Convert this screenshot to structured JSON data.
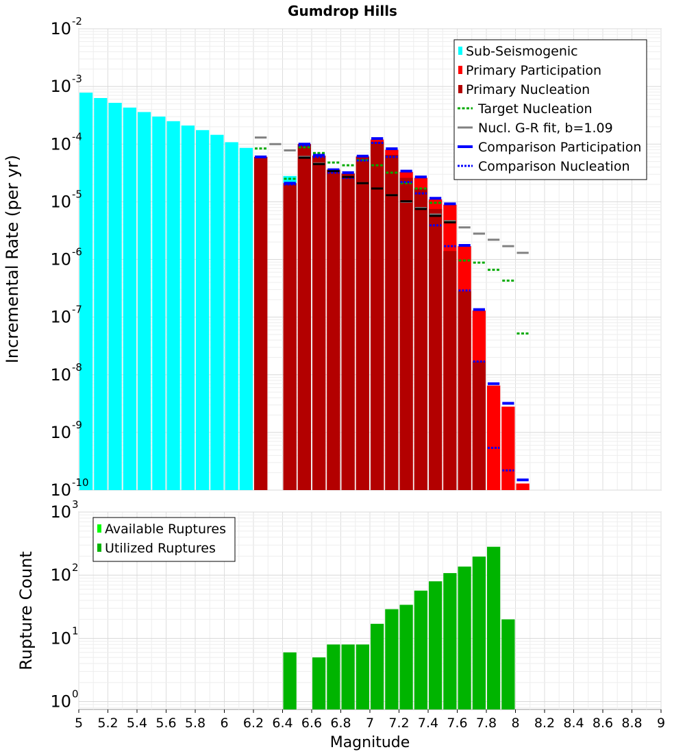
{
  "chart_data": [
    {
      "type": "bar",
      "title": "Gumdrop Hills",
      "xlabel": "",
      "ylabel": "Incremental Rate (per yr)",
      "xlim": [
        5,
        9
      ],
      "ylim": [
        1e-10,
        0.01
      ],
      "log_y": true,
      "grid": true,
      "legend_position": "top-right",
      "bin_width": 0.1,
      "y_tick_labels": [
        {
          "value": 0.01,
          "base": "10",
          "exp": "-2"
        },
        {
          "value": 0.001,
          "base": "10",
          "exp": "-3"
        },
        {
          "value": 0.0001,
          "base": "10",
          "exp": "-4"
        },
        {
          "value": 1e-05,
          "base": "10",
          "exp": "-5"
        },
        {
          "value": 1e-06,
          "base": "10",
          "exp": "-6"
        },
        {
          "value": 1e-07,
          "base": "10",
          "exp": "-7"
        },
        {
          "value": 1e-08,
          "base": "10",
          "exp": "-8"
        },
        {
          "value": 1e-09,
          "base": "10",
          "exp": "-9"
        },
        {
          "value": 1e-10,
          "base": "10",
          "exp": "-10"
        }
      ],
      "series": [
        {
          "name": "Sub-Seismogenic",
          "kind": "bar",
          "color": "#00ffff",
          "x": [
            5.05,
            5.15,
            5.25,
            5.35,
            5.45,
            5.55,
            5.65,
            5.75,
            5.85,
            5.95,
            6.05,
            6.15,
            6.45
          ],
          "values": [
            0.00078,
            0.00063,
            0.00052,
            0.00043,
            0.00036,
            0.0003,
            0.00025,
            0.00021,
            0.000175,
            0.000145,
            0.000108,
            8.6e-05,
            2.8e-05
          ]
        },
        {
          "name": "Primary Participation",
          "kind": "bar",
          "color": "#ff0000",
          "x": [
            6.25,
            6.45,
            6.55,
            6.65,
            6.75,
            6.85,
            6.95,
            7.05,
            7.15,
            7.25,
            7.35,
            7.45,
            7.55,
            7.65,
            7.75,
            7.85,
            7.95,
            8.05
          ],
          "values": [
            6e-05,
            2.1e-05,
            0.0001,
            6.3e-05,
            3.6e-05,
            3.1e-05,
            6.1e-05,
            0.00012,
            8e-05,
            3.3e-05,
            2.6e-05,
            1.1e-05,
            8.9e-06,
            1.7e-06,
            1.3e-07,
            6.5e-09,
            2.8e-09,
            1.3e-10
          ]
        },
        {
          "name": "Primary Nucleation",
          "kind": "bar",
          "color": "#b30000",
          "x": [
            6.25,
            6.45,
            6.55,
            6.65,
            6.75,
            6.85,
            6.95,
            7.05,
            7.15,
            7.25,
            7.35,
            7.45,
            7.55,
            7.65,
            7.75,
            7.85
          ],
          "values": [
            6e-05,
            2.1e-05,
            0.0001,
            6.3e-05,
            3.6e-05,
            3.1e-05,
            6.1e-05,
            0.00011,
            6.5e-05,
            2.6e-05,
            1.7e-05,
            7.5e-06,
            1.4e-06,
            2.8e-07,
            1.7e-08,
            1e-10
          ]
        },
        {
          "name": "Target Nucleation",
          "kind": "step",
          "color": "#00aa00",
          "dash": "4,2.5",
          "x": [
            6.25,
            6.45,
            6.55,
            6.65,
            6.75,
            6.85,
            6.95,
            7.05,
            7.15,
            7.25,
            7.35,
            7.45,
            7.55,
            7.65,
            7.75,
            7.85,
            7.95,
            8.05
          ],
          "values": [
            8.4e-05,
            2.5e-05,
            8.8e-05,
            7e-05,
            4.8e-05,
            4.3e-05,
            5.3e-05,
            4.3e-05,
            3.2e-05,
            2.1e-05,
            1.7e-05,
            9.6e-06,
            4.6e-06,
            9.6e-07,
            8.8e-07,
            6.6e-07,
            4.3e-07,
            5.2e-08
          ]
        },
        {
          "name": "Nucl. G-R fit, b=1.09",
          "kind": "step",
          "color": "#808080",
          "x": [
            6.25,
            6.35,
            6.45,
            6.55,
            6.65,
            6.75,
            6.85,
            6.95,
            7.05,
            7.15,
            7.25,
            7.35,
            7.45,
            7.55,
            7.65,
            7.75,
            7.85,
            7.95,
            8.05
          ],
          "values": [
            0.00013,
            0.0001,
            7.8e-05,
            6e-05,
            4.6e-05,
            3.5e-05,
            2.7e-05,
            2.1e-05,
            1.7e-05,
            1.3e-05,
            1e-05,
            7.8e-06,
            6e-06,
            4.6e-06,
            3.6e-06,
            2.8e-06,
            2.2e-06,
            1.7e-06,
            1.3e-06
          ]
        },
        {
          "name": "Comparison Participation",
          "kind": "step",
          "color": "#0000ff",
          "x": [
            6.25,
            6.45,
            6.55,
            6.65,
            6.75,
            6.85,
            6.95,
            7.05,
            7.15,
            7.25,
            7.35,
            7.45,
            7.55,
            7.65,
            7.75,
            7.85,
            7.95,
            8.05
          ],
          "values": [
            6e-05,
            2.1e-05,
            0.0001,
            6.4e-05,
            3.6e-05,
            3.2e-05,
            6.2e-05,
            0.000125,
            8.3e-05,
            3.4e-05,
            2.7e-05,
            1.15e-05,
            9.2e-06,
            1.75e-06,
            1.35e-07,
            7e-09,
            3.2e-09,
            1.5e-10
          ]
        },
        {
          "name": "Comparison Nucleation",
          "kind": "step",
          "color": "#0000ff",
          "dash": "3,2",
          "x": [
            6.45,
            6.55,
            6.65,
            6.75,
            6.85,
            6.95,
            7.05,
            7.15,
            7.25,
            7.35,
            7.45,
            7.55,
            7.65,
            7.75,
            7.85,
            7.95
          ],
          "values": [
            2e-05,
            9.5e-05,
            6e-05,
            3.2e-05,
            2.6e-05,
            5.2e-05,
            0.000105,
            6e-05,
            2.2e-05,
            1.4e-05,
            3.9e-06,
            1.7e-06,
            2.9e-07,
            1.7e-08,
            5.4e-10,
            2.2e-10
          ]
        },
        {
          "name": "",
          "kind": "step",
          "color": "#000000",
          "x": [
            6.55,
            6.65,
            6.75,
            6.85,
            6.95,
            7.05,
            7.15,
            7.25,
            7.35,
            7.45,
            7.55
          ],
          "values": [
            5.8e-05,
            4.5e-05,
            3.4e-05,
            2.7e-05,
            2.1e-05,
            1.7e-05,
            1.3e-05,
            1.02e-05,
            7.5e-06,
            5.7e-06,
            4.4e-06
          ]
        }
      ]
    },
    {
      "type": "bar",
      "title": "",
      "xlabel": "Magnitude",
      "ylabel": "Rupture Count",
      "xlim": [
        5,
        9
      ],
      "ylim": [
        0.75,
        1000
      ],
      "log_y": true,
      "grid": true,
      "legend_position": "top-left",
      "bin_width": 0.1,
      "x_ticks": [
        "5",
        "5.2",
        "5.4",
        "5.6",
        "5.8",
        "6",
        "6.2",
        "6.4",
        "6.6",
        "6.8",
        "7",
        "7.2",
        "7.4",
        "7.6",
        "7.8",
        "8",
        "8.2",
        "8.4",
        "8.6",
        "8.8",
        "9"
      ],
      "y_tick_labels": [
        {
          "value": 1000,
          "base": "10",
          "exp": "3"
        },
        {
          "value": 100,
          "base": "10",
          "exp": "2"
        },
        {
          "value": 10,
          "base": "10",
          "exp": "1"
        },
        {
          "value": 1,
          "base": "10",
          "exp": "0"
        }
      ],
      "series": [
        {
          "name": "Available Ruptures",
          "kind": "legend-only",
          "color": "#00ff00",
          "x": [],
          "values": []
        },
        {
          "name": "Utilized Ruptures",
          "kind": "bar",
          "color": "#00b400",
          "x": [
            6.45,
            6.65,
            6.75,
            6.85,
            6.95,
            7.05,
            7.15,
            7.25,
            7.35,
            7.45,
            7.55,
            7.65,
            7.75,
            7.85,
            7.95
          ],
          "values": [
            6,
            5,
            8,
            8,
            8,
            17,
            29,
            34,
            57,
            80,
            108,
            137,
            197,
            282,
            20
          ]
        }
      ]
    }
  ]
}
